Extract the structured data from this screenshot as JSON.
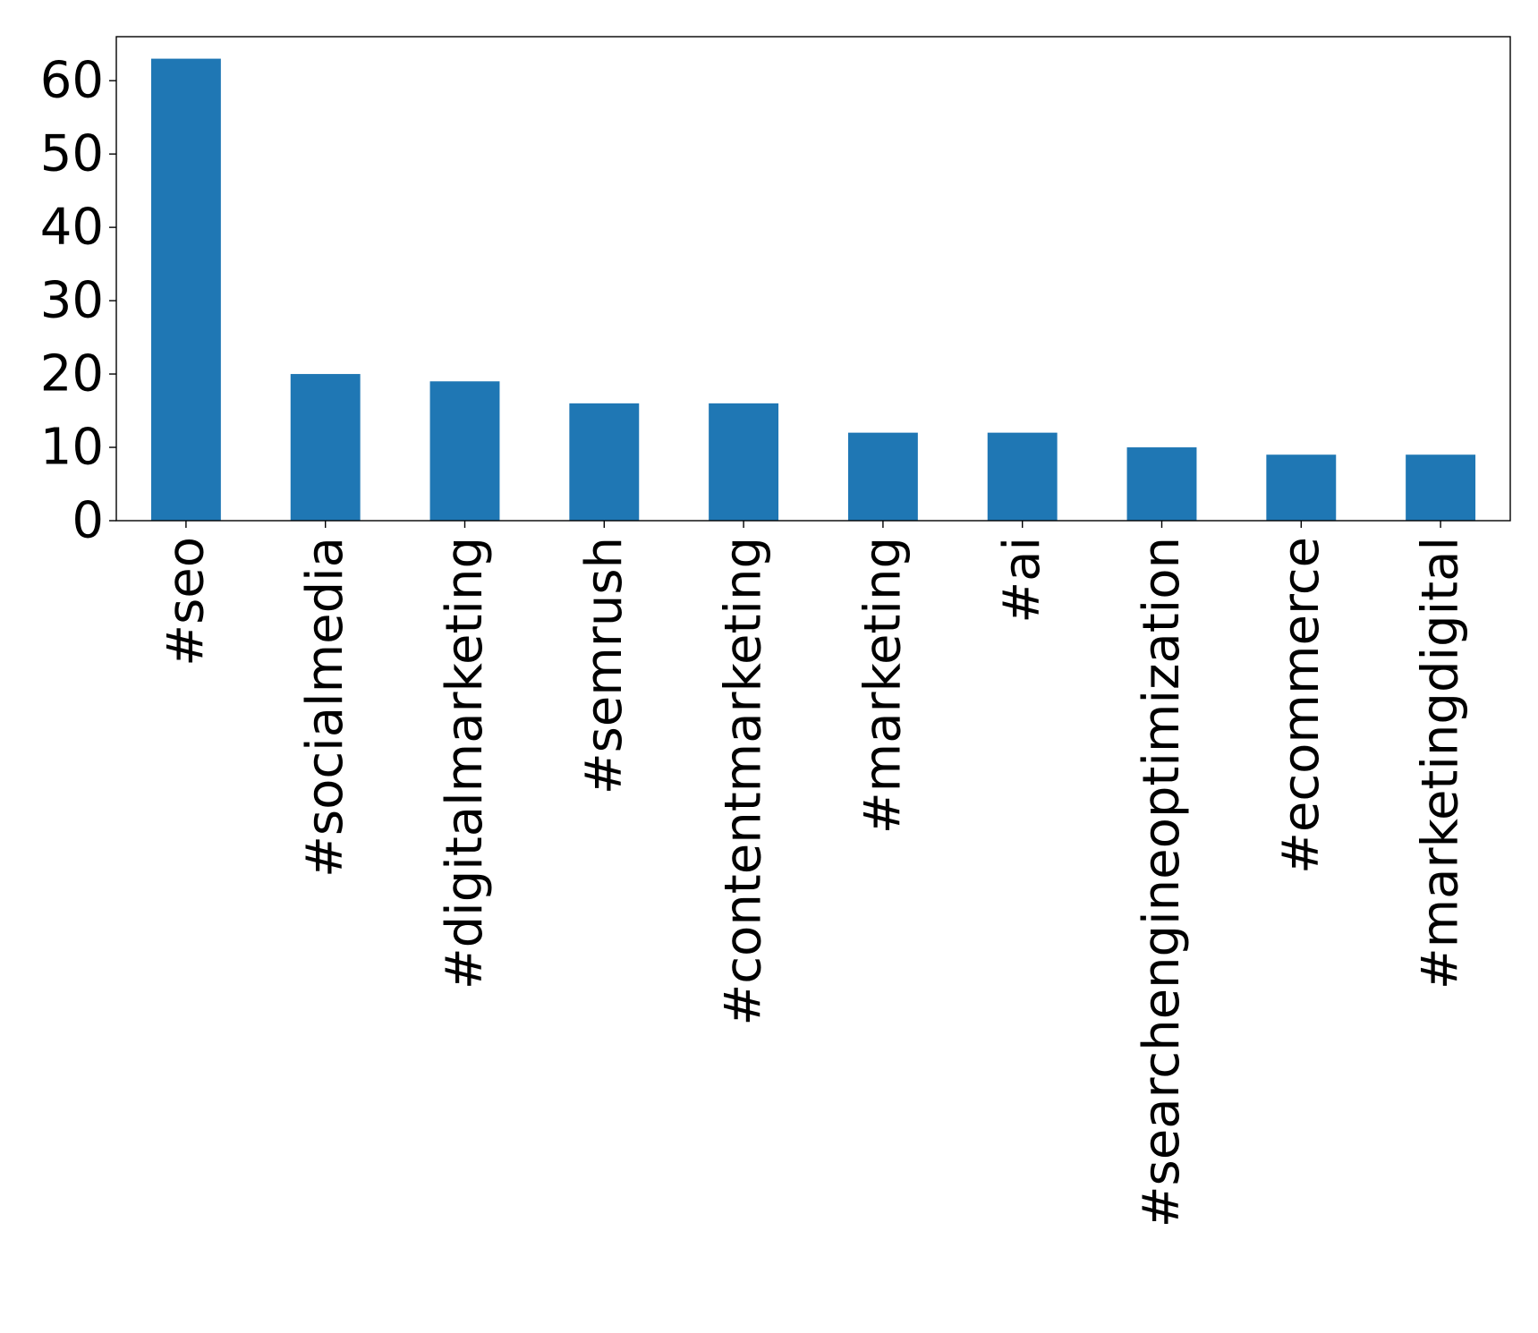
{
  "chart_data": {
    "type": "bar",
    "title": "",
    "xlabel": "",
    "ylabel": "",
    "categories": [
      "#seo",
      "#socialmedia",
      "#digitalmarketing",
      "#semrush",
      "#contentmarketing",
      "#marketing",
      "#ai",
      "#searchengineoptimization",
      "#ecommerce",
      "#marketingdigital"
    ],
    "values": [
      63,
      20,
      19,
      16,
      16,
      12,
      12,
      10,
      9,
      9
    ],
    "ylim": [
      0,
      66
    ],
    "yticks": [
      0,
      10,
      20,
      30,
      40,
      50,
      60
    ],
    "grid": false,
    "legend": "none",
    "bar_color": "#1f77b4"
  }
}
